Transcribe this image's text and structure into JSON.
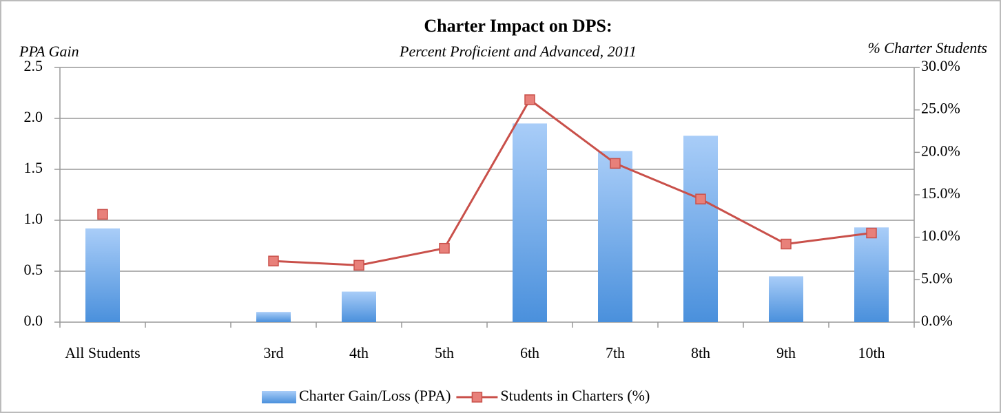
{
  "chart_data": {
    "type": "bar",
    "title": "Charter Impact on DPS:",
    "subtitle": "Percent Proficient and Advanced, 2011",
    "y_label": "PPA Gain",
    "y2_label": "% Charter Students",
    "categories": [
      "All Students",
      null,
      "3rd",
      "4th",
      "5th",
      "6th",
      "7th",
      "8th",
      "9th",
      "10th"
    ],
    "series": [
      {
        "name": "Charter Gain/Loss (PPA)",
        "type": "bar",
        "color": "#4a90dc",
        "values": [
          0.92,
          null,
          0.1,
          0.3,
          null,
          1.95,
          1.68,
          1.83,
          0.45,
          0.93
        ]
      },
      {
        "name": "Students in Charters (%)",
        "type": "line",
        "axis": "y2",
        "color": "#c9504a",
        "values": [
          12.7,
          null,
          7.2,
          6.7,
          8.7,
          26.2,
          18.7,
          14.5,
          9.2,
          10.5
        ]
      }
    ],
    "ylim": [
      0,
      2.5
    ],
    "yticks": [
      {
        "value": 0,
        "label": "0.0"
      },
      0.5,
      {
        "value": 1,
        "label": "1.0"
      },
      1.5,
      {
        "value": 2,
        "label": "2.0"
      },
      2.5
    ],
    "y2lim": [
      0,
      30
    ],
    "y2ticks": [
      {
        "value": 0,
        "label": "0.0%"
      },
      {
        "value": 5,
        "label": "5.0%"
      },
      {
        "value": 10,
        "label": "10.0%"
      },
      {
        "value": 15,
        "label": "15.0%"
      },
      {
        "value": 20,
        "label": "20.0%"
      },
      {
        "value": 25,
        "label": "25.0%"
      },
      {
        "value": 30,
        "label": "30.0%"
      }
    ],
    "grid": true,
    "legend": "bottom"
  }
}
